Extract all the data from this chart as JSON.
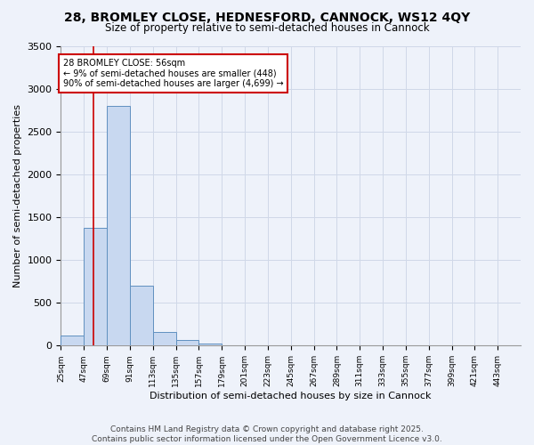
{
  "title": "28, BROMLEY CLOSE, HEDNESFORD, CANNOCK, WS12 4QY",
  "subtitle": "Size of property relative to semi-detached houses in Cannock",
  "xlabel": "Distribution of semi-detached houses by size in Cannock",
  "ylabel": "Number of semi-detached properties",
  "bar_color": "#c8d8f0",
  "bar_edge_color": "#6090c0",
  "background_color": "#eef2fa",
  "grid_color": "#d0d8e8",
  "bins": [
    25,
    47,
    69,
    91,
    113,
    135,
    157,
    179,
    201,
    223,
    245,
    267,
    289,
    311,
    333,
    355,
    377,
    399,
    421,
    443,
    465
  ],
  "counts": [
    120,
    1380,
    2800,
    700,
    155,
    70,
    20,
    0,
    0,
    0,
    0,
    0,
    0,
    0,
    0,
    0,
    0,
    0,
    0,
    0
  ],
  "property_size": 56,
  "property_label": "28 BROMLEY CLOSE: 56sqm",
  "pct_smaller": 9,
  "num_smaller": 448,
  "pct_larger": 90,
  "num_larger": 4699,
  "red_line_color": "#cc0000",
  "annotation_box_color": "#ffffff",
  "annotation_box_edge": "#cc0000",
  "footer_text": "Contains HM Land Registry data © Crown copyright and database right 2025.\nContains public sector information licensed under the Open Government Licence v3.0.",
  "ylim": [
    0,
    3500
  ],
  "title_fontsize": 10,
  "subtitle_fontsize": 8.5,
  "tick_label_fontsize": 6.5,
  "ylabel_fontsize": 8,
  "xlabel_fontsize": 8
}
